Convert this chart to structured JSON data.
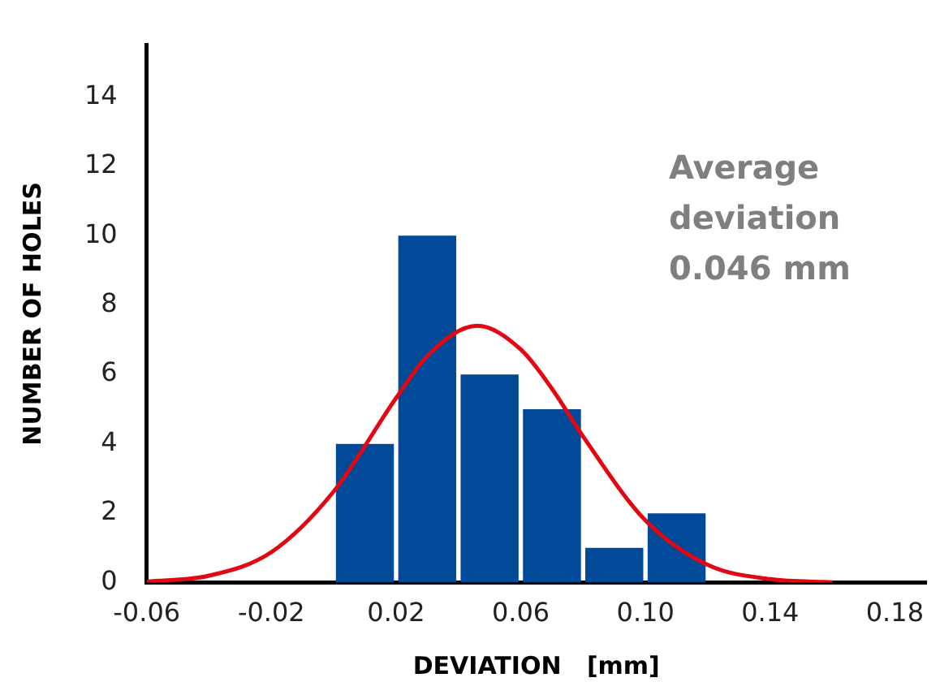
{
  "chart_data": {
    "type": "histogram",
    "xlabel": "DEVIATION   [mm]",
    "ylabel": "NUMBER OF HOLES",
    "annotations": [
      "Average deviation 0.046 mm"
    ],
    "bins": [
      0,
      0.02,
      0.04,
      0.06,
      0.08,
      0.1,
      0.12
    ],
    "values": [
      4,
      10,
      6,
      5,
      1,
      2
    ],
    "color": "#004a99",
    "series": [
      {
        "type": "line",
        "color": "#e30613",
        "x": [
          -0.06,
          -0.04,
          -0.02,
          0,
          0.02,
          0.03,
          0.046,
          0.06,
          0.07,
          0.08,
          0.1,
          0.12,
          0.14,
          0.16
        ],
        "values": [
          0.03,
          0.2,
          0.88,
          2.63,
          5.32,
          6.53,
          7.4,
          6.72,
          5.59,
          4.21,
          1.79,
          0.51,
          0.1,
          0.01
        ]
      }
    ],
    "xlim": [
      -0.06,
      0.19
    ],
    "xticks": [
      {
        "value": -0.06,
        "label": "-0.06"
      },
      {
        "value": -0.02,
        "label": "-0.02"
      },
      {
        "value": 0.02,
        "label": "0.02"
      },
      {
        "value": 0.06,
        "label": "0.06"
      },
      {
        "value": 0.1,
        "label": "0.10"
      },
      {
        "value": 0.14,
        "label": "0.14"
      },
      {
        "value": 0.18,
        "label": "0.18"
      }
    ],
    "ylim": [
      0,
      15.5
    ],
    "yticks": [
      0,
      2,
      4,
      6,
      8,
      10,
      12,
      14
    ],
    "grid": false,
    "legend": false
  }
}
